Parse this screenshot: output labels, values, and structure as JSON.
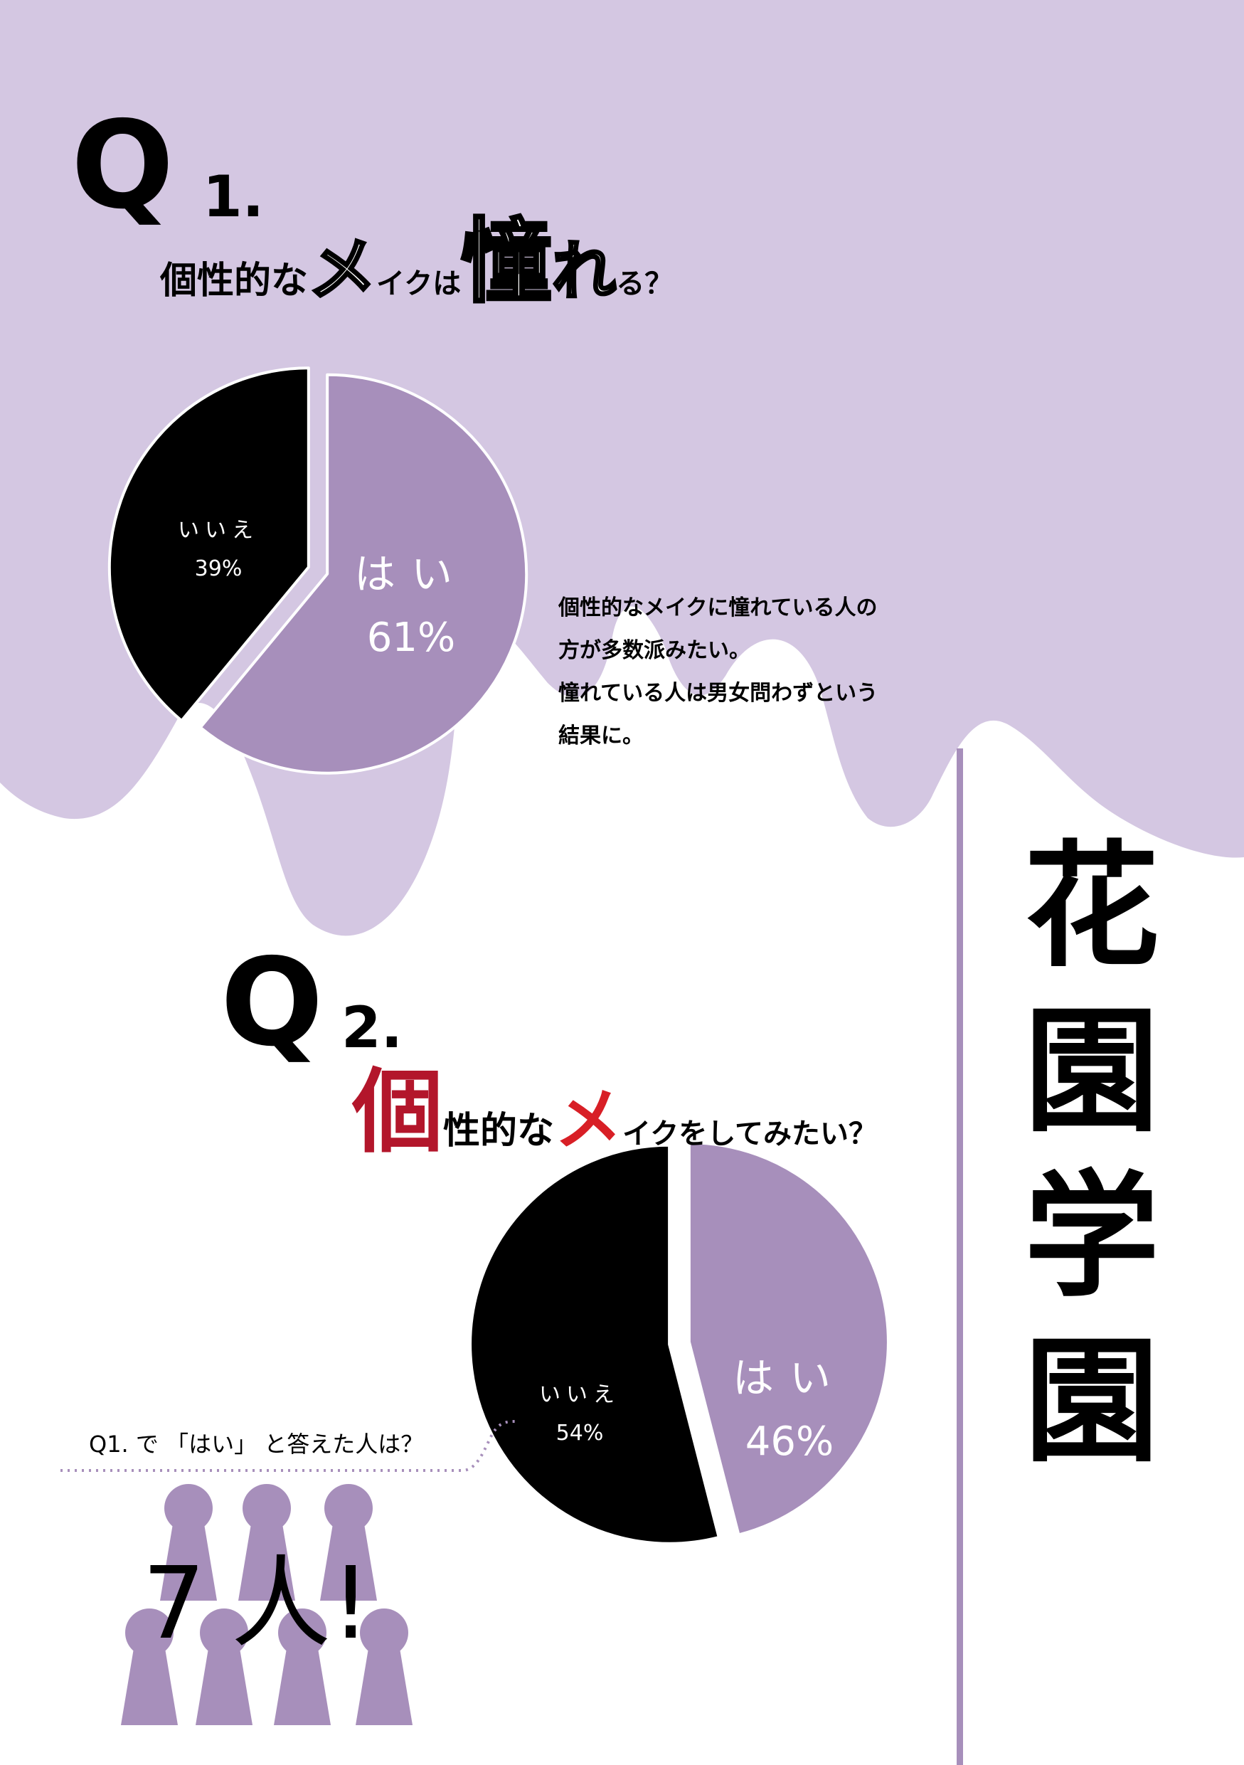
{
  "colors": {
    "lavender_bg": "#d4c7e2",
    "purple": "#a78fbb",
    "black": "#000000",
    "red": "#b3162b",
    "divider": "#a78fbb"
  },
  "q1": {
    "heading_q": "Q",
    "heading_num": "1.",
    "question_parts": [
      "個性的な",
      "メ",
      "イクは",
      "憧",
      "れ",
      "る？"
    ],
    "description": [
      "個性的なメイクに憧れている人の",
      "方が多数派みたい。",
      "憧れている人は男女問わずという",
      "結果に。"
    ]
  },
  "q2": {
    "heading_q": "Q",
    "heading_num": "2.",
    "question_parts": [
      "個",
      "性的な",
      "メ",
      "イクをしてみたい？"
    ]
  },
  "chart_data": [
    {
      "type": "pie",
      "title": "個性的なメイクは憧れる？",
      "slices": [
        {
          "label": "はい",
          "percent_label": "61%",
          "value": 61,
          "color": "#a78fbb"
        },
        {
          "label": "いいえ",
          "percent_label": "39%",
          "value": 39,
          "color": "#000000"
        }
      ]
    },
    {
      "type": "pie",
      "title": "個性的なメイクをしてみたい？",
      "slices": [
        {
          "label": "はい",
          "percent_label": "46%",
          "value": 46,
          "color": "#a78fbb"
        },
        {
          "label": "いいえ",
          "percent_label": "54%",
          "value": 54,
          "color": "#000000"
        }
      ]
    }
  ],
  "note": {
    "question": "Q1. で 「はい」 と答えた人は？",
    "answer_number": "7",
    "answer_text": "人!"
  },
  "title_vertical": [
    "花",
    "園",
    "学",
    "園"
  ]
}
